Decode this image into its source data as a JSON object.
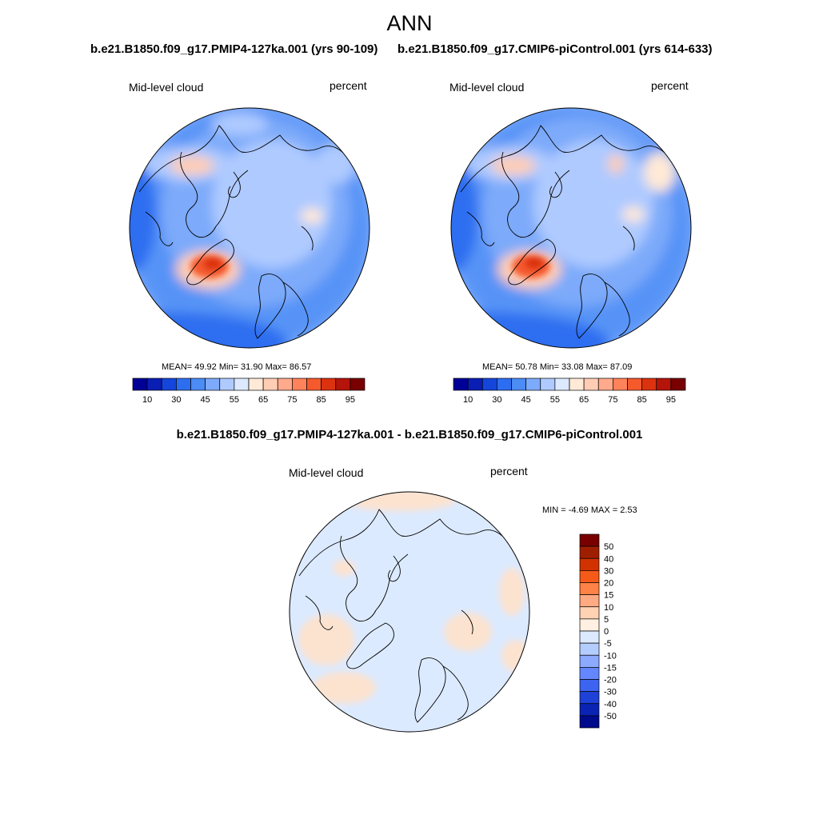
{
  "season": "ANN",
  "panels": [
    {
      "title": "b.e21.B1850.f09_g17.PMIP4-127ka.001 (yrs 90-109)",
      "variable": "Mid-level cloud",
      "units": "percent",
      "stats": "MEAN=  49.92  Min=  31.90  Max=  86.57"
    },
    {
      "title": "b.e21.B1850.f09_g17.CMIP6-piControl.001 (yrs 614-633)",
      "variable": "Mid-level cloud",
      "units": "percent",
      "stats": "MEAN=  50.78  Min=  33.08  Max=  87.09"
    }
  ],
  "difference": {
    "title": "b.e21.B1850.f09_g17.PMIP4-127ka.001 - b.e21.B1850.f09_g17.CMIP6-piControl.001",
    "variable": "Mid-level cloud",
    "units": "percent",
    "stats": "MIN =  -4.69 MAX =   2.53"
  },
  "colorbar_main": {
    "colors": [
      "#000096",
      "#0a1eb4",
      "#1446dc",
      "#2d6ef0",
      "#4b8cf5",
      "#7daafa",
      "#afcaff",
      "#dce9ff",
      "#ffe9d7",
      "#ffcdb4",
      "#ffaa8c",
      "#ff825a",
      "#f55a2d",
      "#dc320f",
      "#b4140a",
      "#780000"
    ],
    "labels": [
      "10",
      "30",
      "45",
      "55",
      "65",
      "75",
      "85",
      "95"
    ]
  },
  "colorbar_diff": {
    "colors": [
      "#780000",
      "#a01e00",
      "#d23200",
      "#f55a19",
      "#ff8246",
      "#ffaa82",
      "#ffd2b4",
      "#fff0e1",
      "#dceaff",
      "#b4cdff",
      "#8caaff",
      "#6487ff",
      "#3c64f0",
      "#1e41d7",
      "#0a23b4",
      "#000a8c"
    ],
    "labels": [
      "50",
      "40",
      "30",
      "20",
      "15",
      "10",
      "5",
      "0",
      "-5",
      "-10",
      "-15",
      "-20",
      "-30",
      "-40",
      "-50"
    ]
  },
  "chart_data": [
    {
      "type": "heatmap",
      "title": "b.e21.B1850.f09_g17.PMIP4-127ka.001 (yrs 90-109)",
      "field": "Mid-level cloud",
      "units": "percent",
      "projection": "north polar stereographic",
      "stats": {
        "mean": 49.92,
        "min": 31.9,
        "max": 86.57
      },
      "levels": [
        10,
        15,
        20,
        25,
        30,
        35,
        40,
        45,
        50,
        55,
        60,
        65,
        70,
        75,
        80,
        85,
        90,
        95
      ]
    },
    {
      "type": "heatmap",
      "title": "b.e21.B1850.f09_g17.CMIP6-piControl.001 (yrs 614-633)",
      "field": "Mid-level cloud",
      "units": "percent",
      "projection": "north polar stereographic",
      "stats": {
        "mean": 50.78,
        "min": 33.08,
        "max": 87.09
      },
      "levels": [
        10,
        15,
        20,
        25,
        30,
        35,
        40,
        45,
        50,
        55,
        60,
        65,
        70,
        75,
        80,
        85,
        90,
        95
      ]
    },
    {
      "type": "heatmap",
      "title": "b.e21.B1850.f09_g17.PMIP4-127ka.001 - b.e21.B1850.f09_g17.CMIP6-piControl.001",
      "field": "Mid-level cloud",
      "units": "percent",
      "projection": "north polar stereographic",
      "stats": {
        "min": -4.69,
        "max": 2.53
      },
      "levels": [
        -50,
        -40,
        -30,
        -20,
        -15,
        -10,
        -5,
        0,
        5,
        10,
        15,
        20,
        30,
        40,
        50
      ]
    }
  ]
}
